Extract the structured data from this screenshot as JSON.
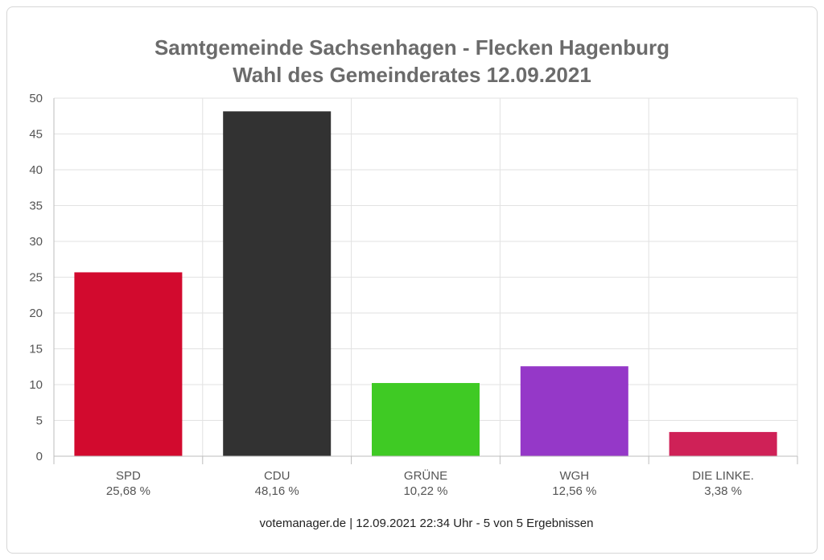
{
  "chart_data": {
    "type": "bar",
    "title_lines": [
      "Samtgemeinde Sachsenhagen - Flecken Hagenburg",
      "Wahl des Gemeinderates 12.09.2021"
    ],
    "categories": [
      "SPD",
      "CDU",
      "GRÜNE",
      "WGH",
      "DIE LINKE."
    ],
    "category_sublabels": [
      "25,68 %",
      "48,16 %",
      "10,22 %",
      "12,56 %",
      "3,38 %"
    ],
    "values": [
      25.68,
      48.16,
      10.22,
      12.56,
      3.38
    ],
    "colors": [
      "#d20a2e",
      "#323232",
      "#3fca24",
      "#9538c8",
      "#cf2157"
    ],
    "ylim": [
      0,
      50
    ],
    "yticks": [
      0,
      5,
      10,
      15,
      20,
      25,
      30,
      35,
      40,
      45,
      50
    ],
    "grid": true,
    "footer": "votemanager.de | 12.09.2021 22:34 Uhr - 5 von 5 Ergebnissen"
  }
}
